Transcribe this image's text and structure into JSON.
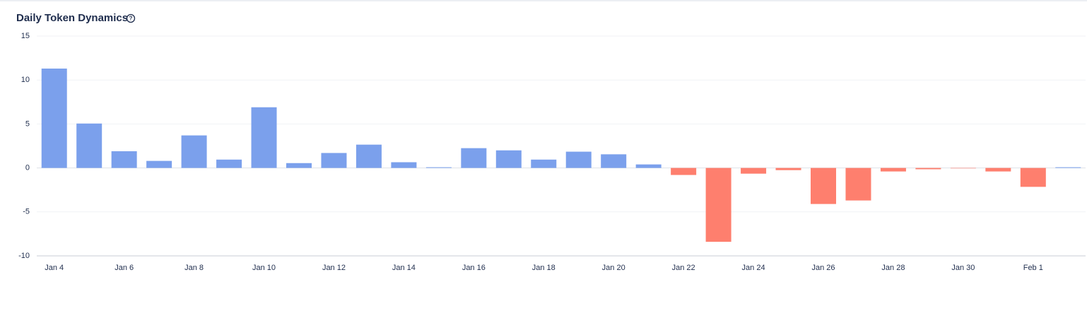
{
  "chart_data": {
    "type": "bar",
    "title": "Daily Token Dynamics",
    "categories": [
      "Jan 4",
      null,
      "Jan 6",
      null,
      "Jan 8",
      null,
      "Jan 10",
      null,
      "Jan 12",
      null,
      "Jan 14",
      null,
      "Jan 16",
      null,
      "Jan 18",
      null,
      "Jan 20",
      null,
      "Jan 22",
      null,
      "Jan 24",
      null,
      "Jan 26",
      null,
      "Jan 28",
      null,
      "Jan 30",
      null,
      "Feb 1",
      null
    ],
    "values": [
      11.3,
      5.05,
      1.9,
      0.8,
      3.7,
      0.95,
      6.9,
      0.55,
      1.7,
      2.65,
      0.65,
      0.08,
      2.25,
      2.0,
      0.95,
      1.85,
      1.55,
      0.4,
      -0.8,
      -8.4,
      -0.65,
      -0.25,
      -4.1,
      -3.7,
      -0.4,
      -0.15,
      -0.05,
      -0.4,
      -2.15,
      0.08
    ],
    "positive_color": "#7ba0ec",
    "negative_color": "#fe7f6e",
    "ylim": [
      -10,
      15
    ],
    "yticks": [
      15,
      10,
      5,
      0,
      -5,
      -10
    ],
    "grid": true
  }
}
